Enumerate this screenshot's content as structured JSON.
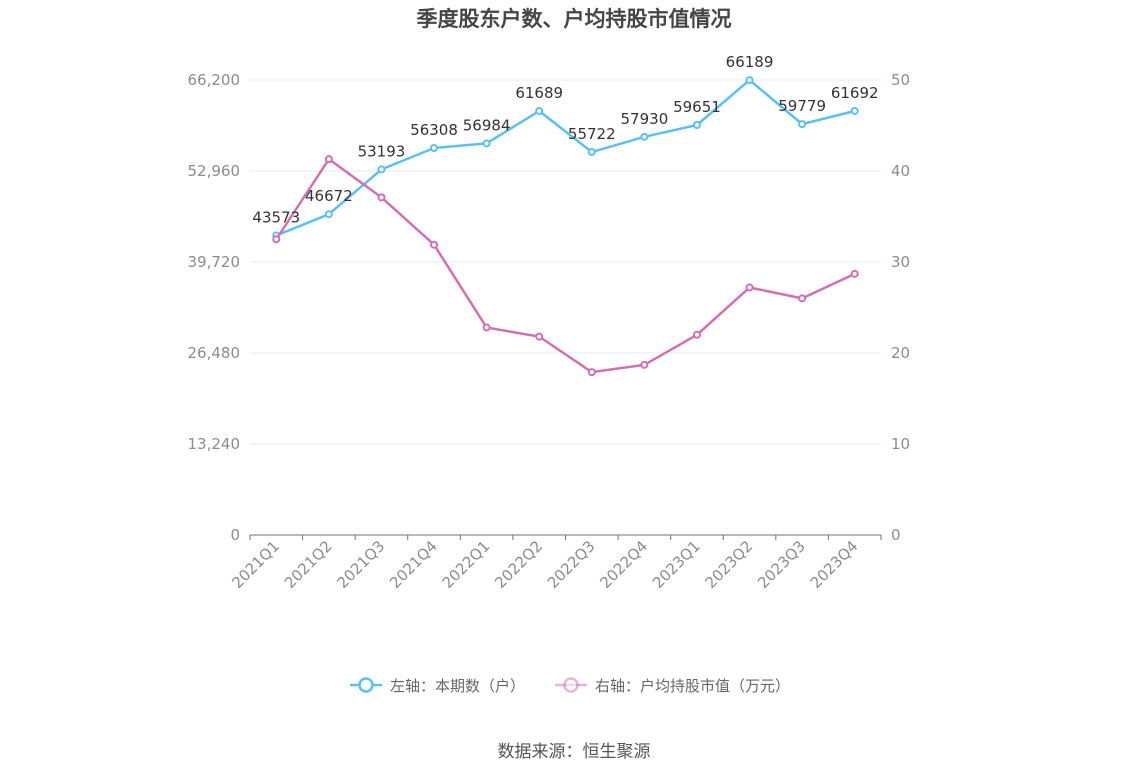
{
  "title": "季度股东户数、户均持股市值情况",
  "source": "数据来源：恒生聚源",
  "chart_data": {
    "type": "line",
    "categories": [
      "2021Q1",
      "2021Q2",
      "2021Q3",
      "2021Q4",
      "2022Q1",
      "2022Q2",
      "2022Q3",
      "2022Q4",
      "2023Q1",
      "2023Q2",
      "2023Q3",
      "2023Q4"
    ],
    "series": [
      {
        "name": "左轴：本期数（户）",
        "axis": "left",
        "color": "#5bc0f0",
        "values": [
          43573,
          46672,
          53193,
          56308,
          56984,
          61689,
          55722,
          57930,
          59651,
          66189,
          59779,
          61692
        ],
        "labels": [
          "43573",
          "46672",
          "53193",
          "56308",
          "56984",
          "61689",
          "55722",
          "57930",
          "59651",
          "66189",
          "59779",
          "61692"
        ]
      },
      {
        "name": "右轴：户均持股市值（万元）",
        "axis": "right",
        "color": "#d070b0",
        "values": [
          32.5,
          41.3,
          37.1,
          31.9,
          22.8,
          21.8,
          17.9,
          18.7,
          22.0,
          27.2,
          26.0,
          28.7
        ]
      }
    ],
    "y_left": {
      "ticks": [
        "0",
        "13,240",
        "26,480",
        "39,720",
        "52,960",
        "66,200"
      ],
      "max": 66200,
      "min": 0
    },
    "y_right": {
      "ticks": [
        "0",
        "10",
        "20",
        "30",
        "40",
        "50"
      ],
      "max": 50,
      "min": 0
    },
    "grid": true,
    "legend_position": "bottom"
  }
}
